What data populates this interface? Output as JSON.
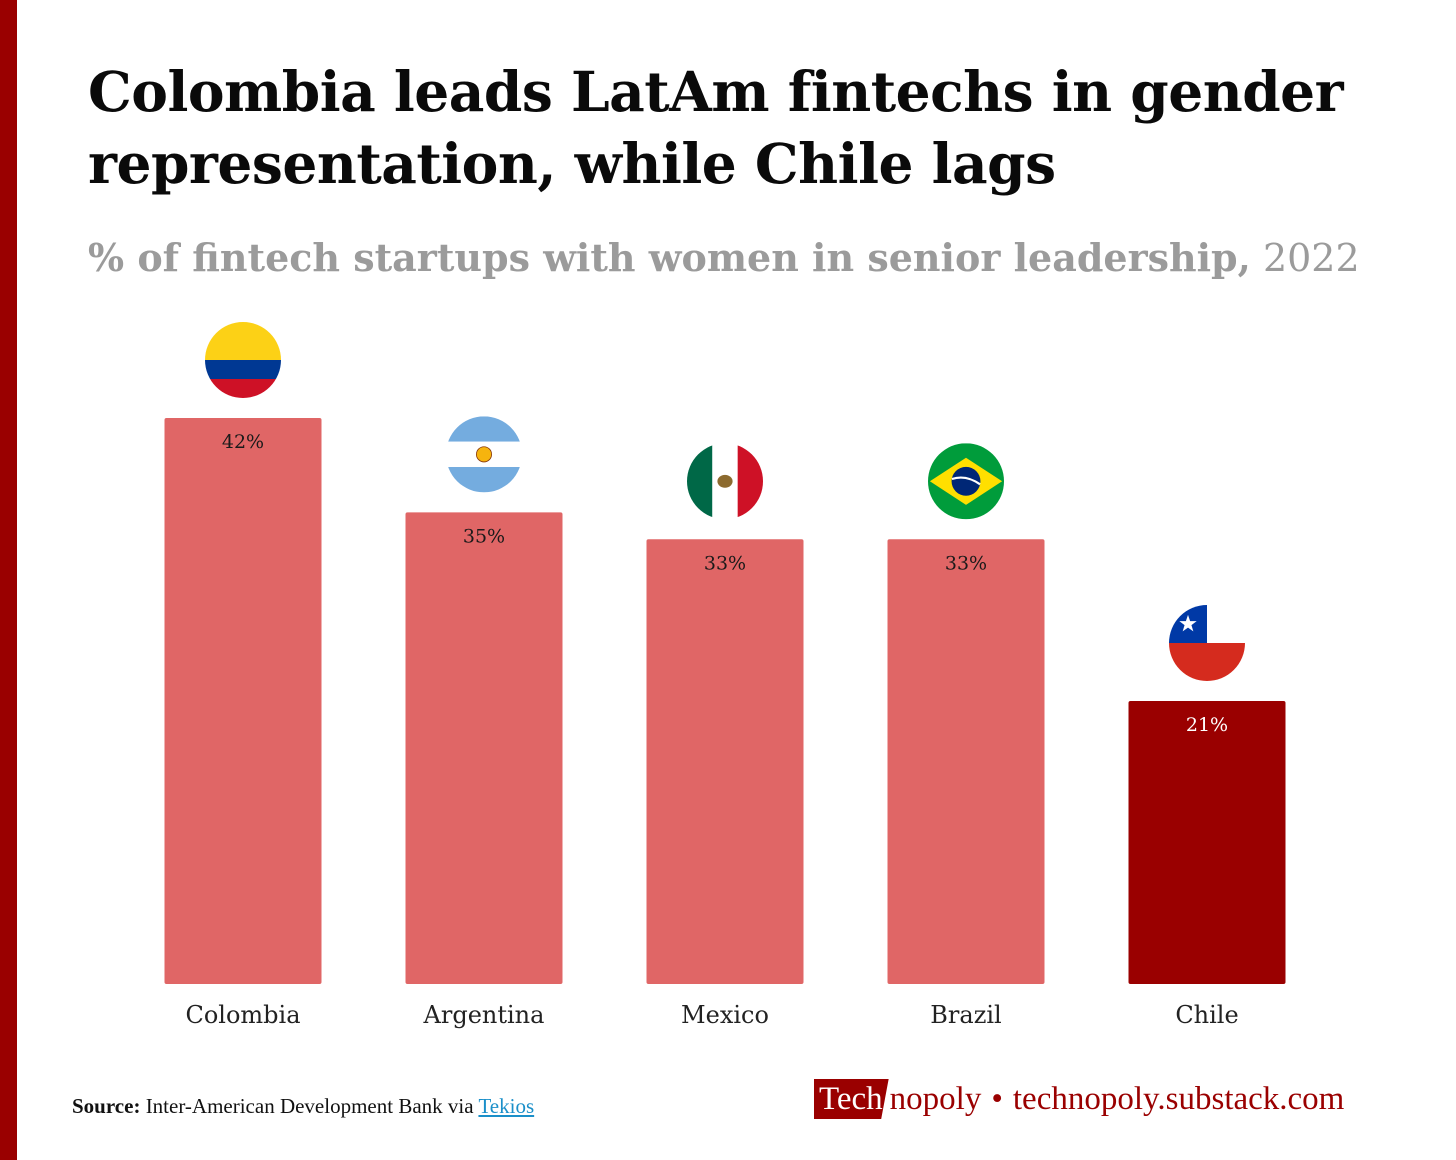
{
  "title": "Colombia leads LatAm fintechs in gender representation, while Chile lags",
  "subtitle_main": "% of fintech startups with women in senior leadership,",
  "subtitle_year": "2022",
  "source": {
    "label": "Source:",
    "text": "Inter-American Development Bank via",
    "link": "Tekios"
  },
  "brand": {
    "logo_box": "Tech",
    "logo_rest": "nopoly",
    "separator": "•",
    "url": "technopoly.substack.com"
  },
  "colors": {
    "accent": "#9a0000",
    "bar": "#e06666",
    "bar_highlight": "#9a0000",
    "subtitle": "#9b9b9b"
  },
  "chart_data": {
    "type": "bar",
    "categories": [
      "Colombia",
      "Argentina",
      "Mexico",
      "Brazil",
      "Chile"
    ],
    "values": [
      42,
      35,
      33,
      33,
      21
    ],
    "value_labels": [
      "42%",
      "35%",
      "33%",
      "33%",
      "21%"
    ],
    "highlight": [
      "Chile"
    ],
    "flags": [
      "colombia-flag-icon",
      "argentina-flag-icon",
      "mexico-flag-icon",
      "brazil-flag-icon",
      "chile-flag-icon"
    ],
    "ylim": [
      0,
      42
    ],
    "grid": false,
    "legend": "none"
  }
}
